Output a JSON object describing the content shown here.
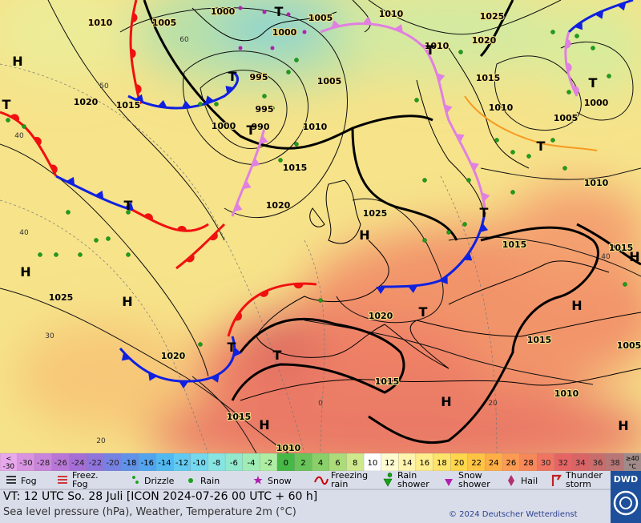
{
  "map": {
    "isobar_labels": [
      "1010",
      "1005",
      "1000",
      "1005",
      "1010",
      "1025",
      "1020",
      "1000",
      "995",
      "1005",
      "1015",
      "1010",
      "1000",
      "1005",
      "1020",
      "1015",
      "1000",
      "995",
      "990",
      "1010",
      "1015",
      "1020",
      "1025",
      "1010",
      "1015",
      "1015",
      "1025",
      "1020",
      "1015",
      "1020",
      "1015",
      "1010",
      "1015",
      "1010",
      "1005",
      "1010"
    ],
    "temperature_lines": [
      "60",
      "50",
      "40",
      "40",
      "30",
      "20",
      "0",
      "20",
      "40"
    ],
    "pressure_centers": [
      "H",
      "H",
      "H",
      "H",
      "H",
      "H",
      "H",
      "H",
      "H",
      "T",
      "T",
      "T",
      "T",
      "T",
      "T",
      "T",
      "T",
      "T",
      "T",
      "T",
      "T"
    ]
  },
  "legend": {
    "scale_first": [
      "<",
      "-30"
    ],
    "scale": [
      {
        "value": -30,
        "color": "#d993e0"
      },
      {
        "value": -28,
        "color": "#c984db"
      },
      {
        "value": -26,
        "color": "#b877d6"
      },
      {
        "value": -24,
        "color": "#a46ed6"
      },
      {
        "value": -22,
        "color": "#8f74dc"
      },
      {
        "value": -20,
        "color": "#7682e2"
      },
      {
        "value": -18,
        "color": "#6192e8"
      },
      {
        "value": -16,
        "color": "#52a4ee"
      },
      {
        "value": -14,
        "color": "#52b8f0"
      },
      {
        "value": -12,
        "color": "#62caf0"
      },
      {
        "value": -10,
        "color": "#74d8ee"
      },
      {
        "value": -8,
        "color": "#86e4e2"
      },
      {
        "value": -6,
        "color": "#92e8cc"
      },
      {
        "value": -4,
        "color": "#9fecb6"
      },
      {
        "value": -2,
        "color": "#aeeea2"
      },
      {
        "value": 0,
        "color": "#46b846"
      },
      {
        "value": 2,
        "color": "#68c458"
      },
      {
        "value": 4,
        "color": "#8ad068"
      },
      {
        "value": 6,
        "color": "#acdc7a"
      },
      {
        "value": 8,
        "color": "#cde98c"
      },
      {
        "value": 10,
        "color": "#ffffff"
      },
      {
        "value": 12,
        "color": "#fffbd0"
      },
      {
        "value": 14,
        "color": "#fff4ae"
      },
      {
        "value": 16,
        "color": "#ffed8e"
      },
      {
        "value": 18,
        "color": "#ffe46c"
      },
      {
        "value": 20,
        "color": "#ffd64c"
      },
      {
        "value": 22,
        "color": "#ffc444"
      },
      {
        "value": 24,
        "color": "#ffae46"
      },
      {
        "value": 26,
        "color": "#fd9b52"
      },
      {
        "value": 28,
        "color": "#f7885a"
      },
      {
        "value": 30,
        "color": "#ef7462"
      },
      {
        "value": 32,
        "color": "#e66464"
      },
      {
        "value": 34,
        "color": "#d86466"
      },
      {
        "value": 36,
        "color": "#c96c6c"
      },
      {
        "value": 38,
        "color": "#b87676"
      }
    ],
    "scale_last": [
      "≥40",
      "°C"
    ],
    "weather": [
      "Fog",
      "Freez. Fog",
      "Drizzle",
      "Rain",
      "Snow",
      "Freezing rain",
      "Rain shower",
      "Snow shower",
      "Hail",
      "Thunder storm"
    ]
  },
  "footer": {
    "valid_time": "VT: 12 UTC So.  28 Juli [ICON 2024-07-26  00 UTC + 60 h]",
    "subtitle": "Sea level pressure (hPa), Weather, Temperature 2m (°C)",
    "copyright": "© 2024 Deutscher Wetterdienst",
    "logo": "DWD"
  }
}
